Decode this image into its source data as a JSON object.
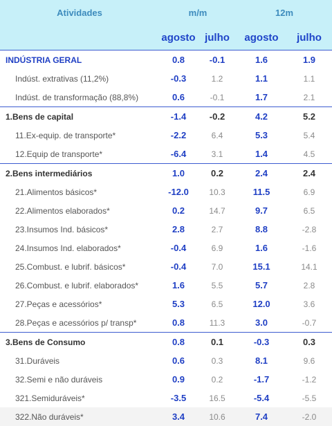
{
  "header": {
    "col_atividades": "Atividades",
    "col_mm": "m/m",
    "col_12m": "12m",
    "sub": [
      "agosto",
      "julho",
      "agosto",
      "julho"
    ]
  },
  "rows": [
    {
      "label": "INDÚSTRIA GERAL",
      "values": [
        "0.8",
        "-0.1",
        "1.6",
        "1.9"
      ],
      "type": "top"
    },
    {
      "label": "Indúst. extrativas (11,2%)",
      "values": [
        "-0.3",
        "1.2",
        "1.1",
        "1.1"
      ],
      "type": "sub"
    },
    {
      "label": "Indúst. de transformação (88,8%)",
      "values": [
        "0.6",
        "-0.1",
        "1.7",
        "2.1"
      ],
      "type": "sub"
    },
    {
      "label": "1.Bens de capital",
      "values": [
        "-1.4",
        "-0.2",
        "4.2",
        "5.2"
      ],
      "type": "group"
    },
    {
      "label": "11.Ex-equip. de transporte*",
      "values": [
        "-2.2",
        "6.4",
        "5.3",
        "5.4"
      ],
      "type": "sub"
    },
    {
      "label": "12.Equip de transporte*",
      "values": [
        "-6.4",
        "3.1",
        "1.4",
        "4.5"
      ],
      "type": "sub"
    },
    {
      "label": "2.Bens intermediários",
      "values": [
        "1.0",
        "0.2",
        "2.4",
        "2.4"
      ],
      "type": "group"
    },
    {
      "label": "21.Alimentos básicos*",
      "values": [
        "-12.0",
        "10.3",
        "11.5",
        "6.9"
      ],
      "type": "sub"
    },
    {
      "label": "22.Alimentos elaborados*",
      "values": [
        "0.2",
        "14.7",
        "9.7",
        "6.5"
      ],
      "type": "sub"
    },
    {
      "label": "23.Insumos Ind. básicos*",
      "values": [
        "2.8",
        "2.7",
        "8.8",
        "-2.8"
      ],
      "type": "sub"
    },
    {
      "label": "24.Insumos Ind. elaborados*",
      "values": [
        "-0.4",
        "6.9",
        "1.6",
        "-1.6"
      ],
      "type": "sub"
    },
    {
      "label": "25.Combust. e lubrif. básicos*",
      "values": [
        "-0.4",
        "7.0",
        "15.1",
        "14.1"
      ],
      "type": "sub"
    },
    {
      "label": "26.Combust. e lubrif. elaborados*",
      "values": [
        "1.6",
        "5.5",
        "5.7",
        "2.8"
      ],
      "type": "sub"
    },
    {
      "label": "27.Peças e acessórios*",
      "values": [
        "5.3",
        "6.5",
        "12.0",
        "3.6"
      ],
      "type": "sub"
    },
    {
      "label": "28.Peças e acessórios p/ transp*",
      "values": [
        "0.8",
        "11.3",
        "3.0",
        "-0.7"
      ],
      "type": "sub"
    },
    {
      "label": "3.Bens de Consumo",
      "values": [
        "0.8",
        "0.1",
        "-0.3",
        "0.3"
      ],
      "type": "group"
    },
    {
      "label": "31.Duráveis",
      "values": [
        "0.6",
        "0.3",
        "8.1",
        "9.6"
      ],
      "type": "sub"
    },
    {
      "label": "32.Semi e não duráveis",
      "values": [
        "0.9",
        "0.2",
        "-1.7",
        "-1.2"
      ],
      "type": "sub"
    },
    {
      "label": "321.Semiduráveis*",
      "values": [
        "-3.5",
        "16.5",
        "-5.4",
        "-5.5"
      ],
      "type": "sub"
    },
    {
      "label": "322.Não duráveis*",
      "values": [
        "3.4",
        "10.6",
        "7.4",
        "-2.0"
      ],
      "type": "sub"
    }
  ]
}
